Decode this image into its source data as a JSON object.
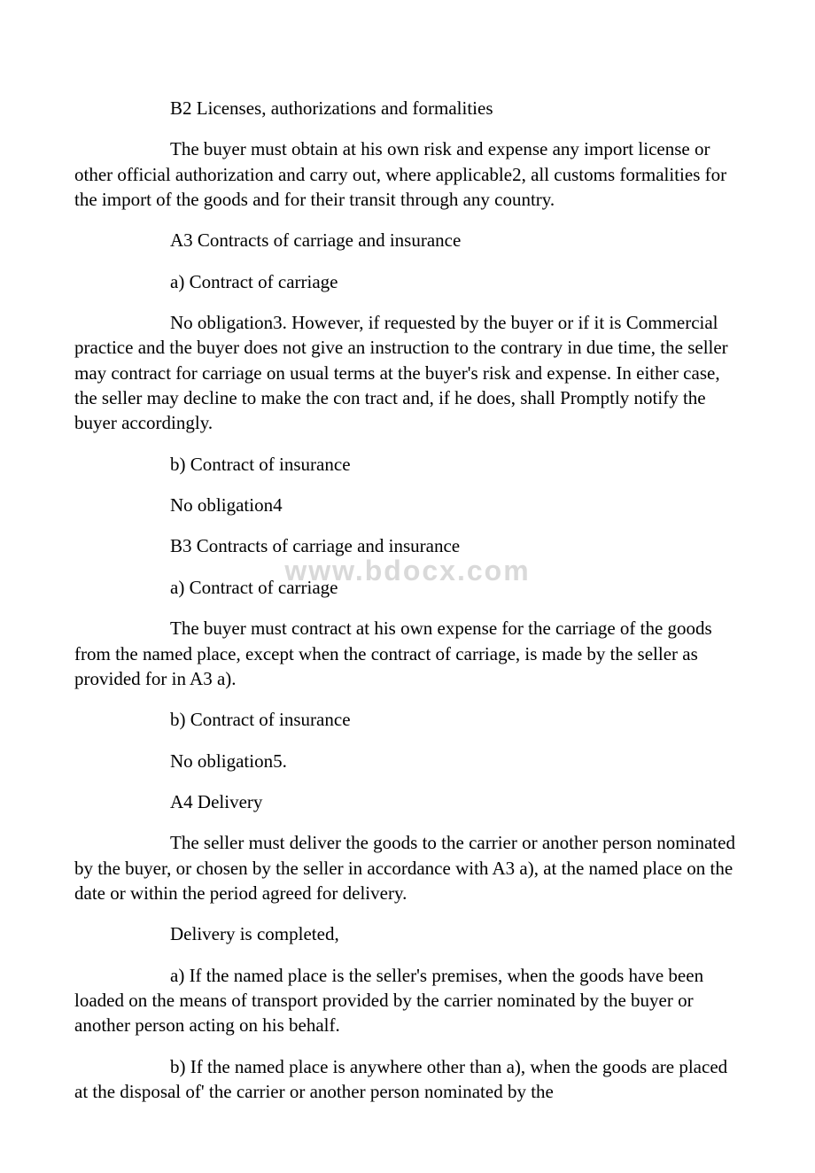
{
  "document": {
    "watermark": "www.bdocx.com",
    "paragraphs": [
      {
        "text": "B2 Licenses, authorizations and formalities",
        "indented": true
      },
      {
        "text": "The buyer must obtain at his own risk and expense any import license or other official authorization and carry out, where applicable2, all customs formalities for the import of the goods and for their transit through any country.",
        "indented": true
      },
      {
        "text": "A3 Contracts of carriage and insurance",
        "indented": true
      },
      {
        "text": "a) Contract of carriage",
        "indented": true
      },
      {
        "text": "No obligation3. However, if requested by the buyer or if it is Commercial practice and the buyer does not give an instruction to the contrary in due time, the seller may contract for carriage on usual terms at the buyer's risk and expense. In either case, the seller may decline to make the con tract and, if he does, shall Promptly notify the buyer accordingly.",
        "indented": true
      },
      {
        "text": "b) Contract of insurance",
        "indented": true
      },
      {
        "text": "No obligation4",
        "indented": true
      },
      {
        "text": "B3 Contracts of carriage and insurance",
        "indented": true
      },
      {
        "text": "a) Contract of carriage",
        "indented": true
      },
      {
        "text": "The buyer must contract at his own expense for the carriage of the goods from the named place, except when the contract of carriage, is made by the seller as provided for in A3 a).",
        "indented": true
      },
      {
        "text": "b) Contract of insurance",
        "indented": true
      },
      {
        "text": "No obligation5.",
        "indented": true
      },
      {
        "text": "A4 Delivery",
        "indented": true
      },
      {
        "text": "The seller must deliver the goods to the carrier or another person nominated by the buyer, or chosen by the seller in accordance with A3 a), at the named place on the date or within the period agreed for delivery.",
        "indented": true
      },
      {
        "text": "Delivery is completed,",
        "indented": true
      },
      {
        "text": "a) If the named place is the seller's premises, when the goods have been loaded on the means of transport provided by the carrier nominated by the buyer or another person acting on his behalf.",
        "indented": true
      },
      {
        "text": "b) If the named place is anywhere other than a), when the goods are placed at the disposal of' the carrier or another person nominated by the",
        "indented": true
      }
    ]
  }
}
